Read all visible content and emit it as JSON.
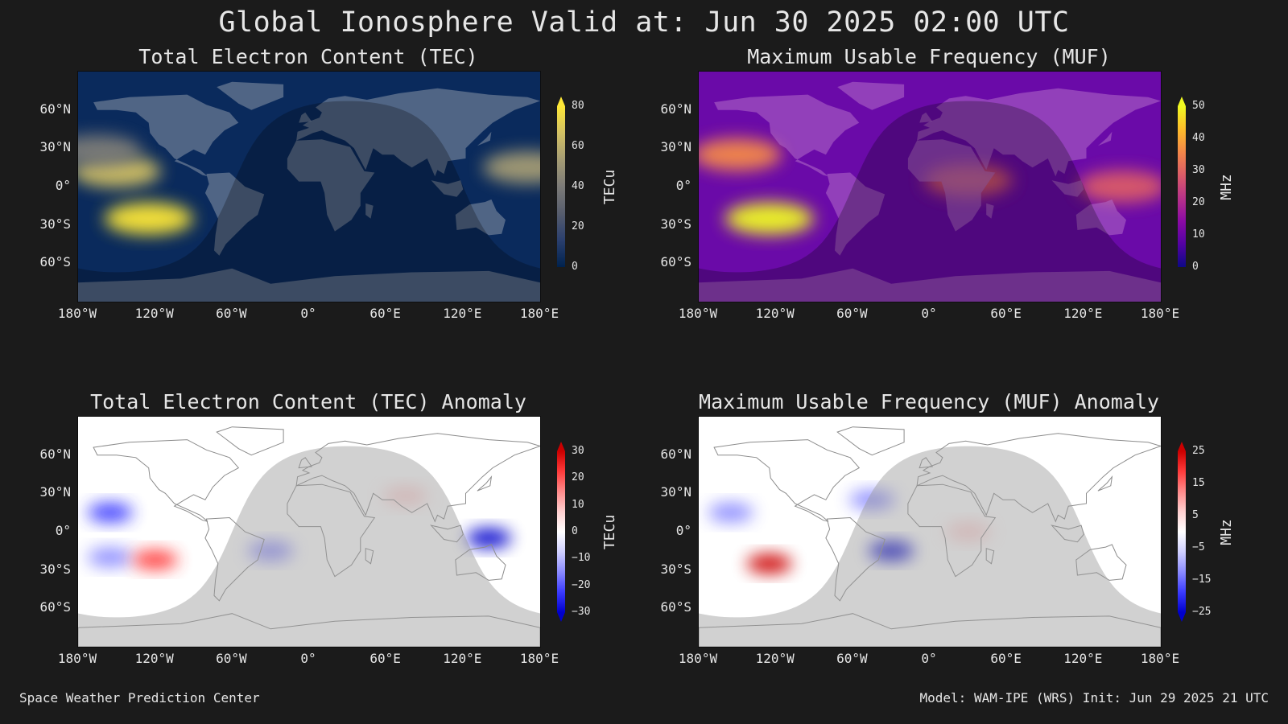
{
  "title": "Global Ionosphere Valid at: Jun 30 2025 02:00 UTC",
  "footer": {
    "left": "Space Weather Prediction Center",
    "right": "Model: WAM-IPE (WRS) Init: Jun 29 2025 21 UTC"
  },
  "axes": {
    "x_ticks": [
      "180°W",
      "120°W",
      "60°W",
      "0°",
      "60°E",
      "120°E",
      "180°E"
    ],
    "y_ticks": [
      "60°N",
      "30°N",
      "0°",
      "30°S",
      "60°S"
    ]
  },
  "chart_data": [
    {
      "type": "heatmap",
      "title": "Total Electron Content (TEC)",
      "colorbar": {
        "label": "TECu",
        "ticks": [
          "80",
          "60",
          "40",
          "20",
          "0"
        ],
        "range": [
          0,
          80
        ],
        "extend": "max",
        "colors": [
          "#00224e",
          "#2a3f6e",
          "#575d6d",
          "#7c7b78",
          "#a59c74",
          "#d3c164",
          "#fde737"
        ]
      },
      "xlim": [
        -180,
        180
      ],
      "ylim": [
        -90,
        90
      ],
      "colors": {
        "background": "#0a2a5c",
        "land": "#8a96a8"
      },
      "hotspots": [
        {
          "lon": -125,
          "lat": -25,
          "value": 80
        },
        {
          "lon": -150,
          "lat": 12,
          "value": 62
        },
        {
          "lon": 170,
          "lat": 15,
          "value": 58
        },
        {
          "lon": -165,
          "lat": 28,
          "value": 45
        }
      ]
    },
    {
      "type": "heatmap",
      "title": "Maximum Usable Frequency (MUF)",
      "colorbar": {
        "label": "MHz",
        "ticks": [
          "50",
          "40",
          "30",
          "20",
          "10",
          "0"
        ],
        "range": [
          0,
          50
        ],
        "extend": "max",
        "colors": [
          "#0d0887",
          "#5302a3",
          "#8b0aa5",
          "#b83289",
          "#db5c68",
          "#f48849",
          "#febd2a",
          "#f0f921"
        ]
      },
      "xlim": [
        -180,
        180
      ],
      "ylim": [
        -90,
        90
      ],
      "colors": {
        "background": "#6a0aa8",
        "land": "#b26ec8"
      },
      "hotspots": [
        {
          "lon": -125,
          "lat": -25,
          "value": 50
        },
        {
          "lon": -150,
          "lat": 25,
          "value": 38
        },
        {
          "lon": 150,
          "lat": 0,
          "value": 30
        },
        {
          "lon": 30,
          "lat": 5,
          "value": 32
        }
      ]
    },
    {
      "type": "heatmap",
      "title": "Total Electron Content (TEC) Anomaly",
      "colorbar": {
        "label": "TECu",
        "ticks": [
          "30",
          "20",
          "10",
          "0",
          "−10",
          "−20",
          "−30"
        ],
        "range": [
          -30,
          30
        ],
        "extend": "both",
        "colors": [
          "#0000cc",
          "#3b3bff",
          "#8b8bff",
          "#d0d0ff",
          "#ffffff",
          "#ffd0d0",
          "#ff8b8b",
          "#ff3b3b",
          "#cc0000"
        ]
      },
      "xlim": [
        -180,
        180
      ],
      "ylim": [
        -90,
        90
      ],
      "colors": {
        "background": "#ffffff",
        "night": "#9a9a9a"
      },
      "hotspots": [
        {
          "lon": -155,
          "lat": 15,
          "value": -25
        },
        {
          "lon": -155,
          "lat": -20,
          "value": -18
        },
        {
          "lon": -120,
          "lat": -22,
          "value": 25
        },
        {
          "lon": 140,
          "lat": -5,
          "value": -28
        },
        {
          "lon": -30,
          "lat": -15,
          "value": -15
        },
        {
          "lon": 75,
          "lat": 28,
          "value": 10
        }
      ]
    },
    {
      "type": "heatmap",
      "title": "Maximum Usable Frequency (MUF) Anomaly",
      "colorbar": {
        "label": "MHz",
        "ticks": [
          "25",
          "15",
          "5",
          "−5",
          "−15",
          "−25"
        ],
        "range": [
          -25,
          25
        ],
        "extend": "both",
        "colors": [
          "#0000cc",
          "#3b3bff",
          "#8b8bff",
          "#d0d0ff",
          "#ffffff",
          "#ffd0d0",
          "#ff8b8b",
          "#ff3b3b",
          "#cc0000"
        ]
      },
      "xlim": [
        -180,
        180
      ],
      "ylim": [
        -90,
        90
      ],
      "colors": {
        "background": "#ffffff",
        "night": "#9a9a9a"
      },
      "hotspots": [
        {
          "lon": -125,
          "lat": -25,
          "value": 25
        },
        {
          "lon": -30,
          "lat": -15,
          "value": -22
        },
        {
          "lon": -45,
          "lat": 25,
          "value": -12
        },
        {
          "lon": -155,
          "lat": 15,
          "value": -10
        },
        {
          "lon": 30,
          "lat": 0,
          "value": 8
        }
      ]
    }
  ]
}
